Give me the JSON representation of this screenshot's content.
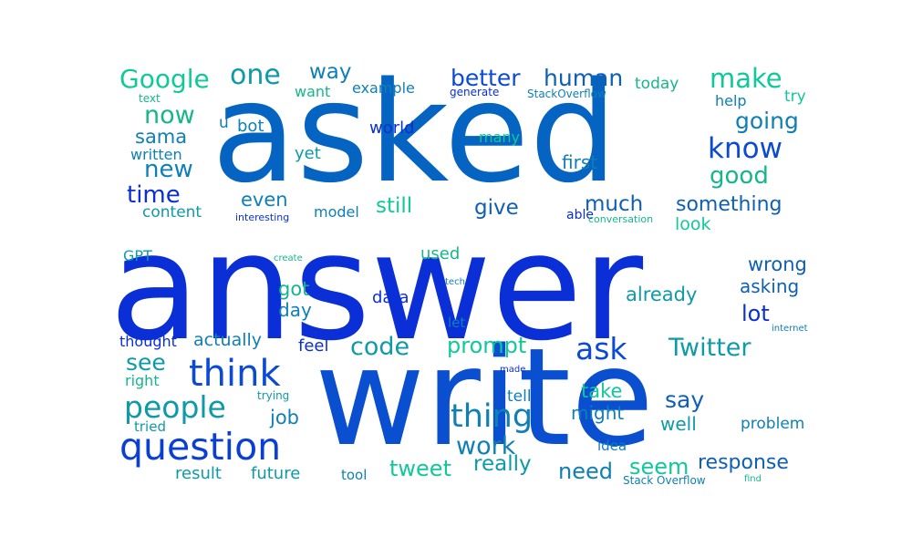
{
  "colors": {
    "blue": "#0a2fd6",
    "azure": "#0563c1",
    "teal": "#0e9aa7",
    "mint": "#10c99a",
    "sea": "#16b68c"
  },
  "words": [
    {
      "text": "answer",
      "color": "#0a2fd6",
      "weight": 1.0
    },
    {
      "text": "asked",
      "color": "#0563c1",
      "weight": 0.8
    },
    {
      "text": "write",
      "color": "#0a4fd0",
      "weight": 0.76
    },
    {
      "text": "question",
      "color": "#0a3fd6",
      "weight": 0.3
    },
    {
      "text": "think",
      "color": "#0a4ad4",
      "weight": 0.29
    },
    {
      "text": "people",
      "color": "#0e9aa7",
      "weight": 0.22
    },
    {
      "text": "thing",
      "color": "#0e7fb7",
      "weight": 0.22
    },
    {
      "text": "Google",
      "color": "#10c99a",
      "weight": 0.19
    },
    {
      "text": "one",
      "color": "#0e9aa7",
      "weight": 0.19
    },
    {
      "text": "better",
      "color": "#0a4ad4",
      "weight": 0.17
    },
    {
      "text": "human",
      "color": "#0e5fb5",
      "weight": 0.17
    },
    {
      "text": "make",
      "color": "#10c99a",
      "weight": 0.17
    },
    {
      "text": "know",
      "color": "#0a4ad4",
      "weight": 0.17
    },
    {
      "text": "going",
      "color": "#0e7fb7",
      "weight": 0.15
    },
    {
      "text": "good",
      "color": "#16b68c",
      "weight": 0.15
    },
    {
      "text": "now",
      "color": "#16b68c",
      "weight": 0.15
    },
    {
      "text": "new",
      "color": "#0e7fb7",
      "weight": 0.15
    },
    {
      "text": "time",
      "color": "#0a2fd6",
      "weight": 0.15
    },
    {
      "text": "ask",
      "color": "#0a4ad4",
      "weight": 0.16
    },
    {
      "text": "code",
      "color": "#0e9aa7",
      "weight": 0.15
    },
    {
      "text": "prompt",
      "color": "#10c99a",
      "weight": 0.15
    },
    {
      "text": "Twitter",
      "color": "#0e9aa7",
      "weight": 0.15
    },
    {
      "text": "work",
      "color": "#0e7fb7",
      "weight": 0.15
    },
    {
      "text": "really",
      "color": "#0e9aa7",
      "weight": 0.14
    },
    {
      "text": "need",
      "color": "#0e7fb7",
      "weight": 0.14
    },
    {
      "text": "tweet",
      "color": "#10c99a",
      "weight": 0.13
    },
    {
      "text": "seem",
      "color": "#10c99a",
      "weight": 0.13
    },
    {
      "text": "response",
      "color": "#0e5fb5",
      "weight": 0.13
    },
    {
      "text": "say",
      "color": "#0e5fb5",
      "weight": 0.13
    },
    {
      "text": "see",
      "color": "#0e9aa7",
      "weight": 0.13
    },
    {
      "text": "way",
      "color": "#0e7fb7",
      "weight": 0.12
    },
    {
      "text": "sama",
      "color": "#0e7fb7",
      "weight": 0.11
    },
    {
      "text": "even",
      "color": "#0e7fb7",
      "weight": 0.11
    },
    {
      "text": "still",
      "color": "#10c99a",
      "weight": 0.12
    },
    {
      "text": "give",
      "color": "#0e5fb5",
      "weight": 0.12
    },
    {
      "text": "much",
      "color": "#0e5fb5",
      "weight": 0.12
    },
    {
      "text": "something",
      "color": "#0e5fb5",
      "weight": 0.12
    },
    {
      "text": "got",
      "color": "#16b68c",
      "weight": 0.11
    },
    {
      "text": "day",
      "color": "#0e7fb7",
      "weight": 0.11
    },
    {
      "text": "wrong",
      "color": "#0e5fb5",
      "weight": 0.11
    },
    {
      "text": "asking",
      "color": "#0e5fb5",
      "weight": 0.11
    },
    {
      "text": "lot",
      "color": "#0a2fd6",
      "weight": 0.12
    },
    {
      "text": "already",
      "color": "#0e9aa7",
      "weight": 0.11
    },
    {
      "text": "job",
      "color": "#0e7fb7",
      "weight": 0.1
    },
    {
      "text": "take",
      "color": "#10c99a",
      "weight": 0.1
    },
    {
      "text": "might",
      "color": "#0e7fb7",
      "weight": 0.1
    },
    {
      "text": "well",
      "color": "#0e9aa7",
      "weight": 0.1
    },
    {
      "text": "look",
      "color": "#10c99a",
      "weight": 0.1
    },
    {
      "text": "first",
      "color": "#0e7fb7",
      "weight": 0.1
    },
    {
      "text": "content",
      "color": "#0e9aa7",
      "weight": 0.09
    },
    {
      "text": "actually",
      "color": "#0e7fb7",
      "weight": 0.09
    },
    {
      "text": "thought",
      "color": "#0a2fd6",
      "weight": 0.08
    },
    {
      "text": "result",
      "color": "#0e9aa7",
      "weight": 0.08
    },
    {
      "text": "future",
      "color": "#0e9aa7",
      "weight": 0.08
    },
    {
      "text": "problem",
      "color": "#0e7fb7",
      "weight": 0.08
    },
    {
      "text": "yet",
      "color": "#0e9aa7",
      "weight": 0.08
    },
    {
      "text": "bot",
      "color": "#0e7fb7",
      "weight": 0.08
    },
    {
      "text": "model",
      "color": "#0e7fb7",
      "weight": 0.07
    },
    {
      "text": "data",
      "color": "#0a2fd6",
      "weight": 0.08
    },
    {
      "text": "used",
      "color": "#16b68c",
      "weight": 0.08
    },
    {
      "text": "feel",
      "color": "#0a2fd6",
      "weight": 0.08
    },
    {
      "text": "tell",
      "color": "#0e7fb7",
      "weight": 0.07
    },
    {
      "text": "world",
      "color": "#0a2fd6",
      "weight": 0.08
    },
    {
      "text": "many",
      "color": "#10c99a",
      "weight": 0.07
    },
    {
      "text": "want",
      "color": "#16b68c",
      "weight": 0.07
    },
    {
      "text": "example",
      "color": "#0e7fb7",
      "weight": 0.07
    },
    {
      "text": "today",
      "color": "#16b68c",
      "weight": 0.07
    },
    {
      "text": "help",
      "color": "#0e7fb7",
      "weight": 0.07
    },
    {
      "text": "try",
      "color": "#10c99a",
      "weight": 0.07
    },
    {
      "text": "written",
      "color": "#0e7fb7",
      "weight": 0.07
    },
    {
      "text": "GPT",
      "color": "#0e9aa7",
      "weight": 0.07
    },
    {
      "text": "right",
      "color": "#16b68c",
      "weight": 0.07
    },
    {
      "text": "tried",
      "color": "#0e9aa7",
      "weight": 0.07
    },
    {
      "text": "tool",
      "color": "#0e7fb7",
      "weight": 0.07
    },
    {
      "text": "idea",
      "color": "#0e7fb7",
      "weight": 0.07
    },
    {
      "text": "let",
      "color": "#0e7fb7",
      "weight": 0.07
    },
    {
      "text": "able",
      "color": "#0a2fd6",
      "weight": 0.06
    },
    {
      "text": "u",
      "color": "#0e7fb7",
      "weight": 0.07
    },
    {
      "text": "text",
      "color": "#16b68c",
      "weight": 0.05
    },
    {
      "text": "generate",
      "color": "#0a2fd6",
      "weight": 0.05
    },
    {
      "text": "StackOverflow",
      "color": "#0e7fb7",
      "weight": 0.05
    },
    {
      "text": "interesting",
      "color": "#0a2fd6",
      "weight": 0.05
    },
    {
      "text": "conversation",
      "color": "#16b68c",
      "weight": 0.05
    },
    {
      "text": "create",
      "color": "#16b68c",
      "weight": 0.04
    },
    {
      "text": "tech",
      "color": "#0e7fb7",
      "weight": 0.04
    },
    {
      "text": "internet",
      "color": "#0e7fb7",
      "weight": 0.04
    },
    {
      "text": "made",
      "color": "#0a2fd6",
      "weight": 0.04
    },
    {
      "text": "trying",
      "color": "#0e9aa7",
      "weight": 0.05
    },
    {
      "text": "Stack Overflow",
      "color": "#0e7fb7",
      "weight": 0.05
    },
    {
      "text": "find",
      "color": "#16b68c",
      "weight": 0.04
    }
  ]
}
